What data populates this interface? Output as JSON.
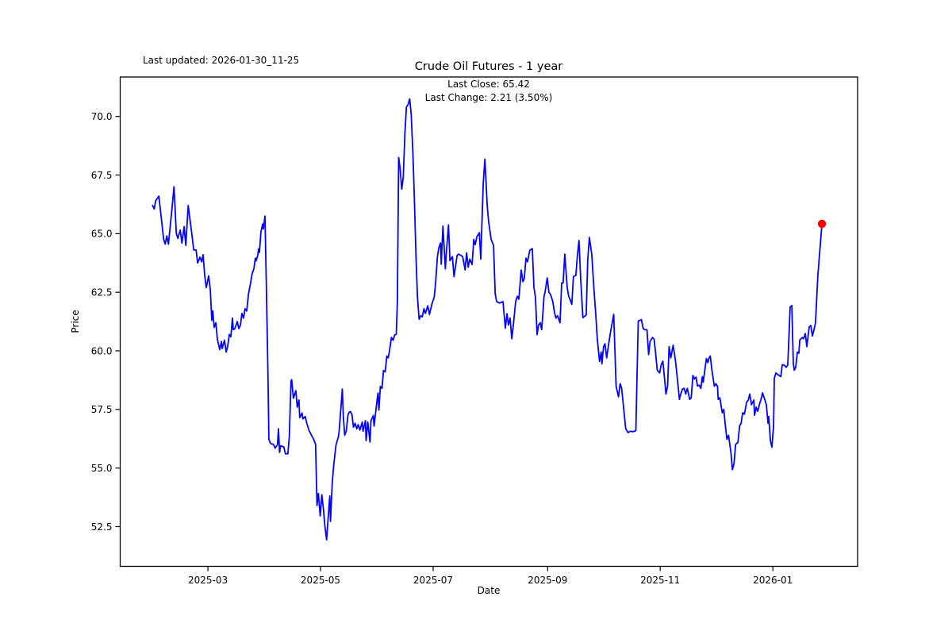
{
  "figure": {
    "title": "Crude Oil Futures - 1 year",
    "last_updated": "Last updated: 2026-01-30_11-25",
    "annotation_line1": "Last Close: 65.42",
    "annotation_line2": "Last Change: 2.21 (3.50%)",
    "xlabel": "Date",
    "ylabel": "Price"
  },
  "chart_data": {
    "type": "line",
    "title": "Crude Oil Futures - 1 year",
    "xlabel": "Date",
    "ylabel": "Price",
    "last_close": 65.42,
    "last_change": "2.21 (3.50%)",
    "line_color": "#0000ff",
    "marker_color": "#ff0000",
    "grid": false,
    "legend": "none",
    "x_unit": "days (0 = 2025-01-29), daily close prices",
    "x_ticks": [
      {
        "d": 31,
        "label": "2025-03"
      },
      {
        "d": 92,
        "label": "2025-05"
      },
      {
        "d": 153,
        "label": "2025-07"
      },
      {
        "d": 215,
        "label": "2025-09"
      },
      {
        "d": 276,
        "label": "2025-11"
      },
      {
        "d": 337,
        "label": "2026-01"
      }
    ],
    "y_ticks": [
      {
        "v": 52.5,
        "label": "52.5"
      },
      {
        "v": 55.0,
        "label": "55.0"
      },
      {
        "v": 57.5,
        "label": "57.5"
      },
      {
        "v": 60.0,
        "label": "60.0"
      },
      {
        "v": 62.5,
        "label": "62.5"
      },
      {
        "v": 65.0,
        "label": "65.0"
      },
      {
        "v": 67.5,
        "label": "67.5"
      },
      {
        "v": 70.0,
        "label": "70.0"
      }
    ],
    "ylim": [
      50.8,
      71.7
    ],
    "xlim_days": [
      -16.5,
      383.2
    ],
    "points": [
      [
        1,
        66.2
      ],
      [
        1.9,
        66.05
      ],
      [
        2.7,
        66.4
      ],
      [
        4.4,
        66.6
      ],
      [
        5.7,
        65.7
      ],
      [
        7,
        64.75
      ],
      [
        7.9,
        64.55
      ],
      [
        8.7,
        64.9
      ],
      [
        9.6,
        64.55
      ],
      [
        11.3,
        65.9
      ],
      [
        12.6,
        67.0
      ],
      [
        13.9,
        65.0
      ],
      [
        14.7,
        64.8
      ],
      [
        16,
        65.15
      ],
      [
        16.9,
        64.6
      ],
      [
        18.1,
        65.3
      ],
      [
        19,
        64.5
      ],
      [
        20.3,
        66.2
      ],
      [
        21.6,
        65.4
      ],
      [
        22.4,
        64.9
      ],
      [
        23.3,
        64.3
      ],
      [
        24.6,
        64.3
      ],
      [
        25.4,
        63.75
      ],
      [
        26.7,
        64.0
      ],
      [
        27.6,
        63.8
      ],
      [
        28.4,
        64.1
      ],
      [
        29.3,
        63.2
      ],
      [
        30.1,
        62.7
      ],
      [
        31.4,
        63.2
      ],
      [
        32.3,
        62.6
      ],
      [
        33.1,
        61.3
      ],
      [
        33.6,
        61.7
      ],
      [
        34.4,
        61.0
      ],
      [
        35.3,
        61.2
      ],
      [
        36.1,
        60.5
      ],
      [
        37.4,
        60.05
      ],
      [
        38.3,
        60.4
      ],
      [
        38.7,
        60.1
      ],
      [
        40,
        60.45
      ],
      [
        40.9,
        59.95
      ],
      [
        41.7,
        60.2
      ],
      [
        42.6,
        60.7
      ],
      [
        43.4,
        60.6
      ],
      [
        44.3,
        61.4
      ],
      [
        44.7,
        60.9
      ],
      [
        45.6,
        60.95
      ],
      [
        46.9,
        61.25
      ],
      [
        47.7,
        60.95
      ],
      [
        48.6,
        61.1
      ],
      [
        49.4,
        61.6
      ],
      [
        50.3,
        61.4
      ],
      [
        51.1,
        61.8
      ],
      [
        52,
        61.7
      ],
      [
        52.9,
        62.4
      ],
      [
        54.1,
        62.9
      ],
      [
        55,
        63.3
      ],
      [
        55.9,
        63.5
      ],
      [
        56.7,
        63.96
      ],
      [
        57.1,
        63.84
      ],
      [
        58,
        64.07
      ],
      [
        58.4,
        64.35
      ],
      [
        58.9,
        64.2
      ],
      [
        59.7,
        65.07
      ],
      [
        60.6,
        65.41
      ],
      [
        61,
        65.2
      ],
      [
        61.9,
        65.75
      ],
      [
        62.7,
        62.5
      ],
      [
        63.6,
        58.5
      ],
      [
        64,
        56.23
      ],
      [
        64.9,
        56.05
      ],
      [
        66.6,
        56.0
      ],
      [
        67.4,
        55.85
      ],
      [
        68.7,
        56.0
      ],
      [
        69.2,
        56.68
      ],
      [
        69.8,
        55.67
      ],
      [
        70.4,
        55.95
      ],
      [
        72.1,
        55.9
      ],
      [
        73,
        55.61
      ],
      [
        74.3,
        55.61
      ],
      [
        75.1,
        56.35
      ],
      [
        76,
        58.7
      ],
      [
        76.4,
        58.77
      ],
      [
        77.3,
        57.98
      ],
      [
        78.6,
        58.3
      ],
      [
        79.4,
        57.6
      ],
      [
        80.3,
        57.9
      ],
      [
        80.7,
        57.15
      ],
      [
        82,
        57.35
      ],
      [
        82.4,
        57.1
      ],
      [
        83.7,
        57.2
      ],
      [
        84.6,
        56.9
      ],
      [
        85.8,
        56.6
      ],
      [
        87.1,
        56.4
      ],
      [
        88.4,
        56.2
      ],
      [
        89.3,
        56.0
      ],
      [
        90.1,
        53.4
      ],
      [
        90.8,
        53.92
      ],
      [
        91.8,
        52.96
      ],
      [
        92.7,
        53.86
      ],
      [
        93.6,
        53.2
      ],
      [
        94.4,
        52.5
      ],
      [
        95.3,
        51.94
      ],
      [
        96.1,
        52.84
      ],
      [
        97,
        53.81
      ],
      [
        97.4,
        52.73
      ],
      [
        98.3,
        54.31
      ],
      [
        99.1,
        55.1
      ],
      [
        99.6,
        55.44
      ],
      [
        100.4,
        56.0
      ],
      [
        101.7,
        56.34
      ],
      [
        102.1,
        56.57
      ],
      [
        103.8,
        58.37
      ],
      [
        104.3,
        57.24
      ],
      [
        105.1,
        56.4
      ],
      [
        106,
        56.6
      ],
      [
        106.8,
        57.24
      ],
      [
        107.3,
        57.36
      ],
      [
        108.1,
        57.41
      ],
      [
        109,
        57.3
      ],
      [
        109.8,
        56.74
      ],
      [
        110.7,
        56.91
      ],
      [
        111.6,
        56.68
      ],
      [
        112.4,
        56.85
      ],
      [
        113.3,
        56.62
      ],
      [
        114.6,
        56.96
      ],
      [
        115,
        56.57
      ],
      [
        116.3,
        57.02
      ],
      [
        116.7,
        56.17
      ],
      [
        117.6,
        56.96
      ],
      [
        118.8,
        56.11
      ],
      [
        119.3,
        57.02
      ],
      [
        120.6,
        57.24
      ],
      [
        121,
        56.79
      ],
      [
        122.3,
        57.69
      ],
      [
        123.1,
        58.2
      ],
      [
        123.6,
        57.47
      ],
      [
        124.4,
        58.48
      ],
      [
        125.3,
        58.4
      ],
      [
        126.1,
        59.16
      ],
      [
        127,
        59.1
      ],
      [
        127.9,
        59.78
      ],
      [
        128.7,
        59.7
      ],
      [
        129.6,
        60.12
      ],
      [
        130.4,
        60.57
      ],
      [
        131.3,
        60.45
      ],
      [
        132.1,
        60.68
      ],
      [
        133,
        60.7
      ],
      [
        133.6,
        62.1
      ],
      [
        134.3,
        68.25
      ],
      [
        135.1,
        67.8
      ],
      [
        136,
        66.9
      ],
      [
        136.8,
        67.4
      ],
      [
        137.7,
        69.3
      ],
      [
        138.5,
        70.4
      ],
      [
        139.4,
        70.5
      ],
      [
        140.3,
        70.75
      ],
      [
        141.1,
        70.1
      ],
      [
        142,
        68.5
      ],
      [
        142.8,
        66.5
      ],
      [
        143.7,
        64.0
      ],
      [
        144.5,
        62.3
      ],
      [
        145.4,
        61.35
      ],
      [
        146.3,
        61.5
      ],
      [
        147.1,
        61.45
      ],
      [
        148,
        61.8
      ],
      [
        148.8,
        61.6
      ],
      [
        150.1,
        61.92
      ],
      [
        151,
        61.55
      ],
      [
        152.3,
        62.0
      ],
      [
        153.6,
        62.3
      ],
      [
        154.4,
        63.0
      ],
      [
        155.3,
        64.0
      ],
      [
        156.1,
        64.4
      ],
      [
        157,
        64.6
      ],
      [
        157.4,
        63.7
      ],
      [
        158.3,
        65.32
      ],
      [
        159.6,
        63.5
      ],
      [
        160,
        64.04
      ],
      [
        161.3,
        65.37
      ],
      [
        162.1,
        63.85
      ],
      [
        163.4,
        64.02
      ],
      [
        164.3,
        63.17
      ],
      [
        166,
        64.07
      ],
      [
        166.8,
        64.13
      ],
      [
        168.1,
        64.07
      ],
      [
        169,
        64.02
      ],
      [
        170.3,
        63.45
      ],
      [
        171.1,
        64.18
      ],
      [
        172,
        63.57
      ],
      [
        172.8,
        63.91
      ],
      [
        174.1,
        63.68
      ],
      [
        175,
        64.75
      ],
      [
        175.8,
        64.53
      ],
      [
        176.7,
        64.87
      ],
      [
        178,
        65.04
      ],
      [
        178.8,
        63.91
      ],
      [
        180.1,
        67.13
      ],
      [
        181,
        68.18
      ],
      [
        182.3,
        66.17
      ],
      [
        183.1,
        65.49
      ],
      [
        184.4,
        64.75
      ],
      [
        185.7,
        64.5
      ],
      [
        186.6,
        62.44
      ],
      [
        187.4,
        62.1
      ],
      [
        189.1,
        62.04
      ],
      [
        190.8,
        62.1
      ],
      [
        192.1,
        60.97
      ],
      [
        193,
        61.59
      ],
      [
        193.8,
        61.1
      ],
      [
        194.7,
        61.4
      ],
      [
        195.6,
        60.52
      ],
      [
        196.4,
        61.08
      ],
      [
        197.7,
        62.1
      ],
      [
        198.6,
        62.33
      ],
      [
        199.4,
        62.2
      ],
      [
        200.7,
        63.45
      ],
      [
        201.6,
        62.95
      ],
      [
        202.4,
        63.1
      ],
      [
        203.3,
        63.96
      ],
      [
        204.1,
        63.8
      ],
      [
        205.4,
        64.3
      ],
      [
        206.7,
        64.36
      ],
      [
        207.6,
        62.72
      ],
      [
        208.4,
        62.3
      ],
      [
        209.3,
        60.69
      ],
      [
        210.1,
        61.1
      ],
      [
        211,
        61.2
      ],
      [
        211.8,
        60.9
      ],
      [
        213.1,
        62.33
      ],
      [
        213.6,
        62.5
      ],
      [
        214.8,
        63.11
      ],
      [
        215.7,
        62.5
      ],
      [
        216.6,
        62.4
      ],
      [
        217.8,
        62.1
      ],
      [
        218.7,
        61.65
      ],
      [
        219.5,
        61.4
      ],
      [
        220.4,
        61.5
      ],
      [
        221.7,
        61.2
      ],
      [
        222.6,
        62.89
      ],
      [
        223.4,
        62.9
      ],
      [
        224.3,
        64.13
      ],
      [
        225.6,
        62.72
      ],
      [
        226.4,
        62.33
      ],
      [
        227.3,
        62.16
      ],
      [
        228.1,
        61.98
      ],
      [
        229,
        63.17
      ],
      [
        230.3,
        63.22
      ],
      [
        231.1,
        64.02
      ],
      [
        232,
        64.71
      ],
      [
        232.9,
        63.11
      ],
      [
        234.1,
        61.42
      ],
      [
        235,
        61.47
      ],
      [
        235.9,
        61.53
      ],
      [
        236.7,
        63.85
      ],
      [
        237.6,
        64.84
      ],
      [
        238.9,
        64.13
      ],
      [
        240.1,
        62.61
      ],
      [
        241,
        61.64
      ],
      [
        241.9,
        60.51
      ],
      [
        243.1,
        59.55
      ],
      [
        244,
        59.95
      ],
      [
        244.4,
        59.45
      ],
      [
        245.3,
        60.18
      ],
      [
        246.1,
        60.3
      ],
      [
        247,
        59.7
      ],
      [
        247.9,
        60.2
      ],
      [
        249.1,
        60.8
      ],
      [
        250.8,
        61.56
      ],
      [
        252.1,
        58.49
      ],
      [
        253.4,
        58.04
      ],
      [
        254.3,
        58.6
      ],
      [
        255.1,
        58.4
      ],
      [
        257.3,
        56.68
      ],
      [
        258.6,
        56.51
      ],
      [
        259.8,
        56.57
      ],
      [
        261.1,
        56.55
      ],
      [
        262,
        56.57
      ],
      [
        262.8,
        56.6
      ],
      [
        264.1,
        61.27
      ],
      [
        265.8,
        61.33
      ],
      [
        266.7,
        60.97
      ],
      [
        267.5,
        60.9
      ],
      [
        268.8,
        60.9
      ],
      [
        269.7,
        59.84
      ],
      [
        270.5,
        60.4
      ],
      [
        271.8,
        60.57
      ],
      [
        272.7,
        60.5
      ],
      [
        273.5,
        59.9
      ],
      [
        274.4,
        59.17
      ],
      [
        275.7,
        59.06
      ],
      [
        276.5,
        59.4
      ],
      [
        277.4,
        59.56
      ],
      [
        278.2,
        58.95
      ],
      [
        279.1,
        58.16
      ],
      [
        280,
        58.49
      ],
      [
        280.8,
        60.18
      ],
      [
        281.7,
        59.7
      ],
      [
        283,
        60.24
      ],
      [
        284.3,
        59.56
      ],
      [
        285.1,
        58.95
      ],
      [
        286.4,
        57.93
      ],
      [
        287.3,
        58.2
      ],
      [
        288.1,
        58.38
      ],
      [
        289,
        58.4
      ],
      [
        289.8,
        58.16
      ],
      [
        290.7,
        58.4
      ],
      [
        292,
        57.93
      ],
      [
        292.8,
        58.0
      ],
      [
        293.7,
        58.95
      ],
      [
        294.5,
        58.8
      ],
      [
        295.4,
        58.88
      ],
      [
        296.2,
        58.5
      ],
      [
        297.1,
        58.54
      ],
      [
        298,
        58.4
      ],
      [
        298.8,
        58.9
      ],
      [
        299.3,
        58.66
      ],
      [
        301,
        59.67
      ],
      [
        301.8,
        59.5
      ],
      [
        302.3,
        59.67
      ],
      [
        303.1,
        59.78
      ],
      [
        304,
        59.17
      ],
      [
        305.3,
        58.49
      ],
      [
        306.1,
        58.6
      ],
      [
        307,
        58.49
      ],
      [
        307.4,
        57.93
      ],
      [
        308.3,
        58.0
      ],
      [
        309.6,
        57.36
      ],
      [
        310.4,
        57.5
      ],
      [
        311.3,
        56.8
      ],
      [
        312.1,
        56.23
      ],
      [
        313,
        56.4
      ],
      [
        314.3,
        55.67
      ],
      [
        315.1,
        54.93
      ],
      [
        316,
        55.21
      ],
      [
        316.8,
        56.0
      ],
      [
        318.1,
        56.1
      ],
      [
        319,
        56.8
      ],
      [
        319.8,
        56.9
      ],
      [
        320.7,
        57.36
      ],
      [
        321.6,
        57.3
      ],
      [
        322.8,
        57.81
      ],
      [
        323.7,
        57.9
      ],
      [
        324.5,
        58.16
      ],
      [
        325.4,
        57.7
      ],
      [
        326.7,
        57.9
      ],
      [
        327.1,
        57.25
      ],
      [
        328,
        57.6
      ],
      [
        328.8,
        57.42
      ],
      [
        329.7,
        57.7
      ],
      [
        331,
        58.04
      ],
      [
        331.4,
        58.21
      ],
      [
        332.7,
        57.9
      ],
      [
        333.5,
        57.7
      ],
      [
        334.4,
        56.91
      ],
      [
        334.8,
        57.2
      ],
      [
        335.7,
        56.17
      ],
      [
        336.5,
        55.89
      ],
      [
        337.4,
        56.8
      ],
      [
        337.8,
        58.83
      ],
      [
        338.7,
        59.06
      ],
      [
        339.5,
        59.0
      ],
      [
        340.4,
        58.95
      ],
      [
        341.3,
        58.9
      ],
      [
        342.1,
        59.4
      ],
      [
        343,
        59.4
      ],
      [
        344.3,
        59.3
      ],
      [
        345.1,
        59.4
      ],
      [
        346.4,
        61.87
      ],
      [
        347.3,
        61.93
      ],
      [
        348.1,
        59.45
      ],
      [
        348.6,
        59.17
      ],
      [
        349.4,
        59.3
      ],
      [
        350.3,
        59.95
      ],
      [
        351.1,
        59.9
      ],
      [
        351.6,
        60.46
      ],
      [
        352.9,
        60.57
      ],
      [
        353.7,
        60.52
      ],
      [
        354.6,
        60.74
      ],
      [
        355.4,
        60.18
      ],
      [
        356.7,
        61.02
      ],
      [
        357.6,
        61.08
      ],
      [
        358.4,
        60.63
      ],
      [
        359.3,
        60.91
      ],
      [
        360.1,
        61.19
      ],
      [
        361.4,
        63.21
      ],
      [
        363.6,
        65.42
      ]
    ]
  }
}
